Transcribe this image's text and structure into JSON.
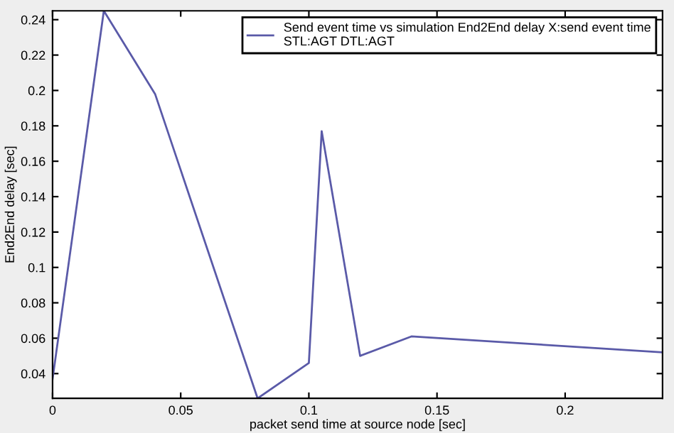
{
  "chart_data": {
    "type": "line",
    "xlabel": "packet send time at source node [sec]",
    "ylabel": "End2End delay [sec]",
    "x": [
      0,
      0.02,
      0.04,
      0.08,
      0.1,
      0.105,
      0.12,
      0.14,
      0.238
    ],
    "series": [
      {
        "name": "Send event time vs simulation End2End delay X:send event time\nSTL:AGT DTL:AGT",
        "color": "#5a5aa8",
        "values": [
          0.037,
          0.245,
          0.198,
          0.026,
          0.046,
          0.177,
          0.05,
          0.061,
          0.052
        ]
      }
    ],
    "xlim": [
      0,
      0.238
    ],
    "ylim": [
      0.026,
      0.245
    ],
    "xticks": [
      0,
      0.05,
      0.1,
      0.15,
      0.2
    ],
    "yticks": [
      0.04,
      0.06,
      0.08,
      0.1,
      0.12,
      0.14,
      0.16,
      0.18,
      0.2,
      0.22,
      0.24
    ],
    "grid": false,
    "legend": "top right",
    "marker": "none",
    "line_style": "solid"
  }
}
